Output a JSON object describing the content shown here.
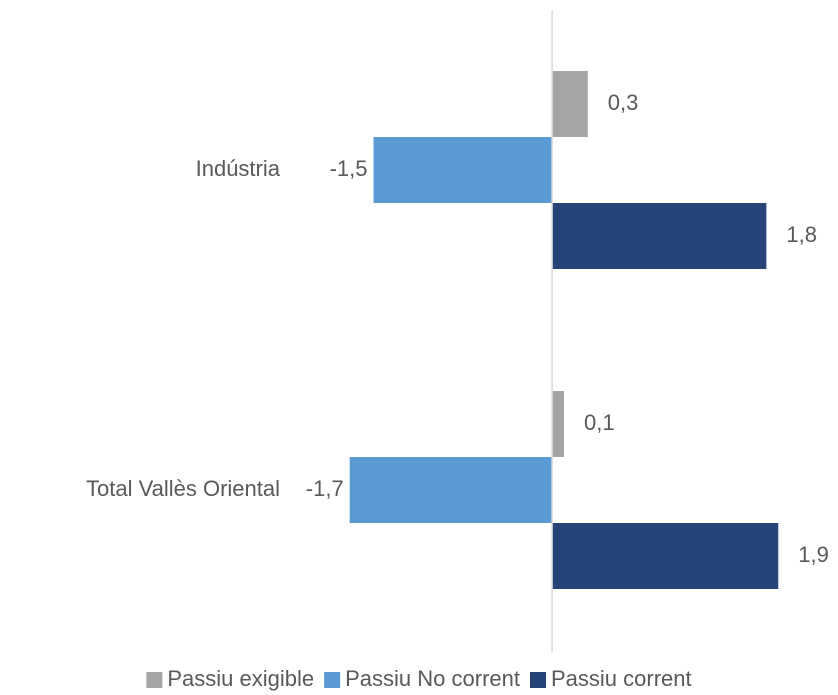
{
  "chart_data": {
    "type": "hbar",
    "categories": [
      "Indústria",
      "Total Vallès Oriental"
    ],
    "series": [
      {
        "name": "Passiu exigible",
        "color": "#a5a5a5",
        "values": [
          0.3,
          0.1
        ],
        "value_labels": [
          "0,3",
          "0,1"
        ]
      },
      {
        "name": "Passiu No corrent",
        "color": "#5b9bd5",
        "values": [
          -1.5,
          -1.7
        ],
        "value_labels": [
          "-1,5",
          "-1,7"
        ]
      },
      {
        "name": "Passiu corrent",
        "color": "#264478",
        "values": [
          1.8,
          1.9
        ],
        "value_labels": [
          "1,8",
          "1,9"
        ]
      }
    ],
    "xlim": [
      -2,
      2.2
    ],
    "legend": "bottom"
  }
}
